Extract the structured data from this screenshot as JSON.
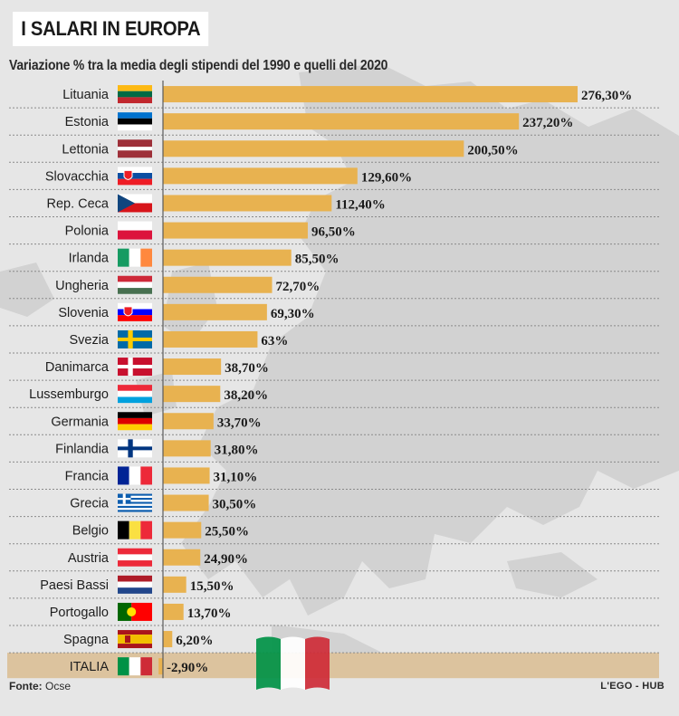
{
  "title": "I SALARI IN EUROPA",
  "subtitle": "Variazione % tra la media degli stipendi del 1990 e quelli del  2020",
  "source_label": "Fonte:",
  "source_value": "Ocse",
  "credit": "L'EGO - HUB",
  "colors": {
    "bar": "#e8b250",
    "background": "#e6e6e6",
    "highlight_row": "#dcc39e"
  },
  "chart_data": {
    "type": "bar",
    "orientation": "horizontal",
    "title": "I SALARI IN EUROPA",
    "subtitle": "Variazione % tra la media degli stipendi del 1990 e quelli del  2020",
    "xlim": [
      -5,
      280
    ],
    "grid": false,
    "categories": [
      "Lituania",
      "Estonia",
      "Lettonia",
      "Slovacchia",
      "Rep. Ceca",
      "Polonia",
      "Irlanda",
      "Ungheria",
      "Slovenia",
      "Svezia",
      "Danimarca",
      "Lussemburgo",
      "Germania",
      "Finlandia",
      "Francia",
      "Grecia",
      "Belgio",
      "Austria",
      "Paesi Bassi",
      "Portogallo",
      "Spagna",
      "ITALIA"
    ],
    "values": [
      276.3,
      237.2,
      200.5,
      129.6,
      112.4,
      96.5,
      85.5,
      72.7,
      69.3,
      63,
      38.7,
      38.2,
      33.7,
      31.8,
      31.1,
      30.5,
      25.5,
      24.9,
      15.5,
      13.7,
      6.2,
      -2.9
    ],
    "value_labels": [
      "276,30%",
      "237,20%",
      "200,50%",
      "129,60%",
      "112,40%",
      "96,50%",
      "85,50%",
      "72,70%",
      "69,30%",
      "63%",
      "38,70%",
      "38,20%",
      "33,70%",
      "31,80%",
      "31,10%",
      "30,50%",
      "25,50%",
      "24,90%",
      "15,50%",
      "13,70%",
      "6,20%",
      "-2,90%"
    ],
    "flags": [
      {
        "type": "h",
        "colors": [
          "#fdb913",
          "#006a44",
          "#c1272d"
        ]
      },
      {
        "type": "h",
        "colors": [
          "#0072ce",
          "#000000",
          "#ffffff"
        ]
      },
      {
        "type": "h3",
        "colors": [
          "#9e3039",
          "#ffffff",
          "#9e3039"
        ]
      },
      {
        "type": "h",
        "colors": [
          "#ffffff",
          "#0b4ea2",
          "#ee1c25"
        ],
        "emblem": "shield"
      },
      {
        "type": "cz",
        "colors": [
          "#ffffff",
          "#d7141a",
          "#11457e"
        ]
      },
      {
        "type": "h2",
        "colors": [
          "#ffffff",
          "#dc143c"
        ]
      },
      {
        "type": "v",
        "colors": [
          "#169b62",
          "#ffffff",
          "#ff883e"
        ]
      },
      {
        "type": "h",
        "colors": [
          "#ce2939",
          "#ffffff",
          "#477050"
        ]
      },
      {
        "type": "h",
        "colors": [
          "#ffffff",
          "#0000ff",
          "#ff0000"
        ],
        "emblem": "shield"
      },
      {
        "type": "nordic",
        "colors": [
          "#006aa7",
          "#fecc00"
        ]
      },
      {
        "type": "nordic",
        "colors": [
          "#c8102e",
          "#ffffff"
        ]
      },
      {
        "type": "h",
        "colors": [
          "#ed2939",
          "#ffffff",
          "#00a1de"
        ]
      },
      {
        "type": "h",
        "colors": [
          "#000000",
          "#dd0000",
          "#ffce00"
        ]
      },
      {
        "type": "nordic",
        "colors": [
          "#ffffff",
          "#003580"
        ]
      },
      {
        "type": "v",
        "colors": [
          "#002395",
          "#ffffff",
          "#ed2939"
        ]
      },
      {
        "type": "gr",
        "colors": [
          "#0d5eaf",
          "#ffffff"
        ]
      },
      {
        "type": "v",
        "colors": [
          "#000000",
          "#fae042",
          "#ed2939"
        ]
      },
      {
        "type": "h",
        "colors": [
          "#ed2939",
          "#ffffff",
          "#ed2939"
        ]
      },
      {
        "type": "h",
        "colors": [
          "#ae1c28",
          "#ffffff",
          "#21468b"
        ]
      },
      {
        "type": "pt",
        "colors": [
          "#006600",
          "#ff0000"
        ]
      },
      {
        "type": "es",
        "colors": [
          "#aa151b",
          "#f1bf00",
          "#aa151b"
        ]
      },
      {
        "type": "v",
        "colors": [
          "#009246",
          "#ffffff",
          "#ce2b37"
        ]
      }
    ]
  }
}
